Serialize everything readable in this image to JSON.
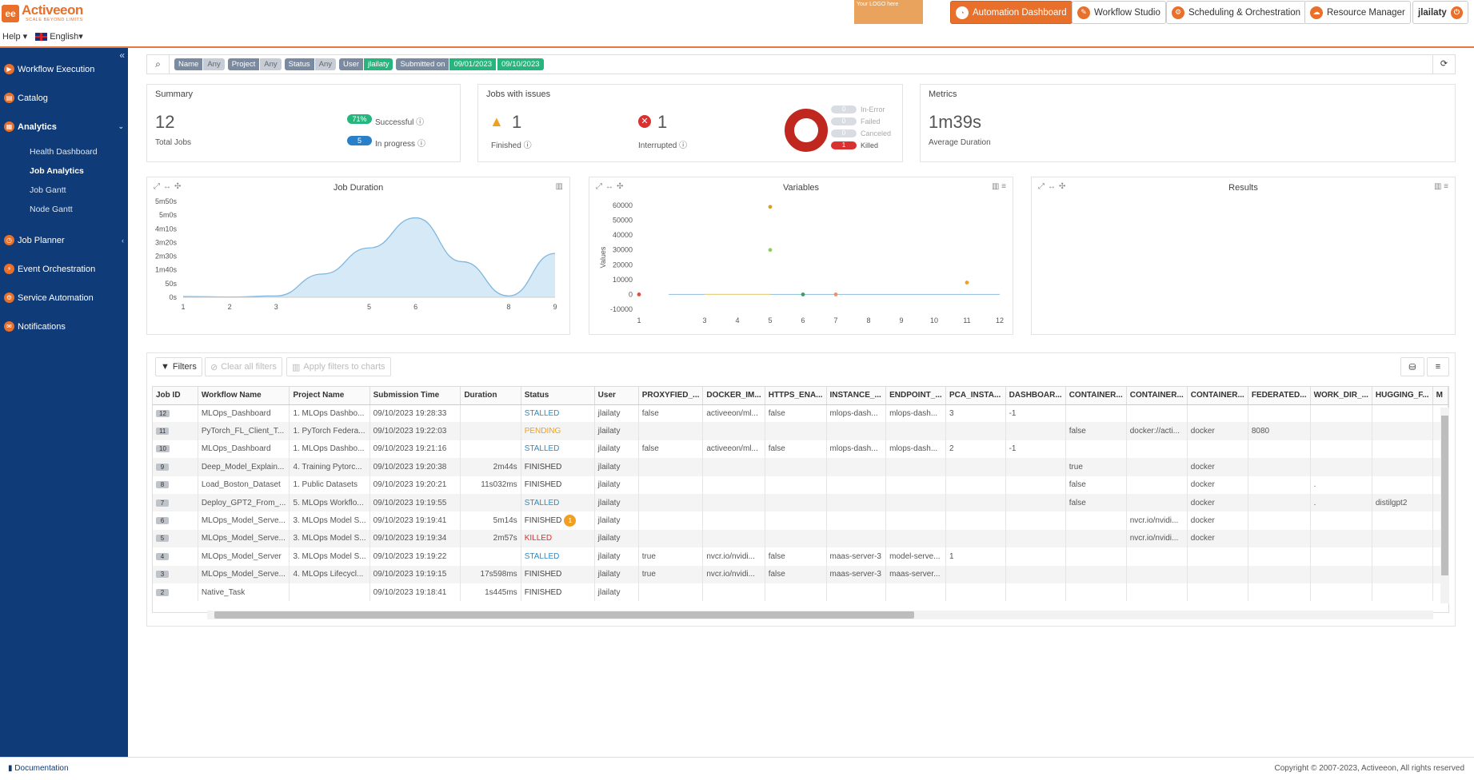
{
  "app": {
    "brand": "Activeeon",
    "tagline": "SCALE BEYOND LIMITS",
    "help": "Help",
    "language": "English"
  },
  "promo": {
    "text": "Your LOGO here"
  },
  "topnav": [
    {
      "label": "Automation Dashboard",
      "icon": "dashboard-icon"
    },
    {
      "label": "Workflow Studio",
      "icon": "studio-icon"
    },
    {
      "label": "Scheduling & Orchestration",
      "icon": "scheduler-icon"
    },
    {
      "label": "Resource Manager",
      "icon": "cloud-icon"
    }
  ],
  "user": {
    "name": "jlailaty"
  },
  "sidebar": {
    "items": [
      {
        "label": "Workflow Execution"
      },
      {
        "label": "Catalog"
      },
      {
        "label": "Analytics"
      },
      {
        "label": "Job Planner"
      },
      {
        "label": "Event Orchestration"
      },
      {
        "label": "Service Automation"
      },
      {
        "label": "Notifications"
      }
    ],
    "analytics_sub": [
      "Health Dashboard",
      "Job Analytics",
      "Job Gantt",
      "Node Gantt"
    ]
  },
  "filters": [
    {
      "key": "Name",
      "value": "Any"
    },
    {
      "key": "Project",
      "value": "Any"
    },
    {
      "key": "Status",
      "value": "Any"
    },
    {
      "key": "User",
      "value": "jlailaty"
    },
    {
      "key": "Submitted on",
      "value": "09/01/2023",
      "value2": "09/10/2023"
    }
  ],
  "summary": {
    "title": "Summary",
    "total": "12",
    "total_label": "Total Jobs",
    "success_pct": "71%",
    "success_label": "Successful",
    "inprogress": "5",
    "inprogress_label": "In progress"
  },
  "issues": {
    "title": "Jobs with issues",
    "finished": "1",
    "finished_label": "Finished",
    "interrupted": "1",
    "interrupted_label": "Interrupted",
    "legend": [
      {
        "count": "0",
        "label": "In-Error"
      },
      {
        "count": "0",
        "label": "Failed"
      },
      {
        "count": "0",
        "label": "Canceled"
      },
      {
        "count": "1",
        "label": "Killed"
      }
    ]
  },
  "metrics": {
    "title": "Metrics",
    "avg": "1m39s",
    "avg_label": "Average Duration"
  },
  "charts": {
    "duration": {
      "title": "Job Duration"
    },
    "variables": {
      "title": "Variables",
      "ylabel": "Values"
    },
    "results": {
      "title": "Results"
    }
  },
  "chart_data": [
    {
      "type": "area",
      "title": "Job Duration",
      "x": [
        1,
        2,
        3,
        4,
        5,
        6,
        7,
        8,
        9
      ],
      "values_seconds": [
        3,
        1,
        5,
        85,
        180,
        290,
        130,
        5,
        160
      ],
      "yticks": [
        "0s",
        "50s",
        "1m40s",
        "2m30s",
        "3m20s",
        "4m10s",
        "5m0s",
        "5m50s"
      ],
      "ylim": [
        0,
        350
      ],
      "xticks": [
        "1",
        "2",
        "3",
        "5",
        "6",
        "8",
        "9"
      ],
      "color": "#d6e9f7"
    },
    {
      "type": "scatter",
      "title": "Variables",
      "ylabel": "Values",
      "yticks": [
        "-10000",
        "0",
        "10000",
        "20000",
        "30000",
        "40000",
        "50000",
        "60000"
      ],
      "ylim": [
        -10000,
        60000
      ],
      "xticks": [
        "1",
        "3",
        "4",
        "5",
        "6",
        "7",
        "8",
        "9",
        "10",
        "11",
        "12"
      ],
      "points": [
        {
          "x": 1,
          "y": 0,
          "color": "#e0503a"
        },
        {
          "x": 5,
          "y": 59000,
          "color": "#d8a020"
        },
        {
          "x": 5,
          "y": 30000,
          "color": "#8ccf5a"
        },
        {
          "x": 6,
          "y": 0,
          "color": "#3aa060"
        },
        {
          "x": 7,
          "y": 0,
          "color": "#f0906a"
        },
        {
          "x": 11,
          "y": 8000,
          "color": "#f0a020"
        }
      ]
    }
  ],
  "grid": {
    "filters_btn": "Filters",
    "clear_btn": "Clear all filters",
    "apply_btn": "Apply filters to charts",
    "columns": [
      "Job ID",
      "Workflow Name",
      "Project Name",
      "Submission Time",
      "Duration",
      "Status",
      "User",
      "PROXYFIED_...",
      "DOCKER_IM...",
      "HTTPS_ENA...",
      "INSTANCE_...",
      "ENDPOINT_...",
      "PCA_INSTA...",
      "DASHBOAR...",
      "CONTAINER...",
      "CONTAINER...",
      "CONTAINER...",
      "FEDERATED...",
      "WORK_DIR_...",
      "HUGGING_F...",
      "M"
    ],
    "rows": [
      [
        "12",
        "MLOps_Dashboard",
        "1. MLOps Dashbo...",
        "09/10/2023 19:28:33",
        "",
        "STALLED",
        "jlailaty",
        "false",
        "activeeon/ml...",
        "false",
        "mlops-dash...",
        "mlops-dash...",
        "3",
        "-1",
        "",
        "",
        "",
        "",
        "",
        "",
        ""
      ],
      [
        "11",
        "PyTorch_FL_Client_T...",
        "1. PyTorch Federa...",
        "09/10/2023 19:22:03",
        "",
        "PENDING",
        "jlailaty",
        "",
        "",
        "",
        "",
        "",
        "",
        "",
        "false",
        "docker://acti...",
        "docker",
        "8080",
        "",
        "",
        ""
      ],
      [
        "10",
        "MLOps_Dashboard",
        "1. MLOps Dashbo...",
        "09/10/2023 19:21:16",
        "",
        "STALLED",
        "jlailaty",
        "false",
        "activeeon/ml...",
        "false",
        "mlops-dash...",
        "mlops-dash...",
        "2",
        "-1",
        "",
        "",
        "",
        "",
        "",
        "",
        ""
      ],
      [
        "9",
        "Deep_Model_Explain...",
        "4. Training Pytorc...",
        "09/10/2023 19:20:38",
        "2m44s",
        "FINISHED",
        "jlailaty",
        "",
        "",
        "",
        "",
        "",
        "",
        "",
        "true",
        "",
        "docker",
        "",
        "",
        "",
        ""
      ],
      [
        "8",
        "Load_Boston_Dataset",
        "1. Public Datasets",
        "09/10/2023 19:20:21",
        "11s032ms",
        "FINISHED",
        "jlailaty",
        "",
        "",
        "",
        "",
        "",
        "",
        "",
        "false",
        "",
        "docker",
        "",
        ".",
        "",
        ""
      ],
      [
        "7",
        "Deploy_GPT2_From_...",
        "5. MLOps Workflo...",
        "09/10/2023 19:19:55",
        "",
        "STALLED",
        "jlailaty",
        "",
        "",
        "",
        "",
        "",
        "",
        "",
        "false",
        "",
        "docker",
        "",
        ".",
        "distilgpt2",
        ""
      ],
      [
        "6",
        "MLOps_Model_Serve...",
        "3. MLOps Model S...",
        "09/10/2023 19:19:41",
        "5m14s",
        "FINISHED",
        "jlailaty",
        "",
        "",
        "",
        "",
        "",
        "",
        "",
        "",
        "nvcr.io/nvidi...",
        "docker",
        "",
        "",
        "",
        ""
      ],
      [
        "5",
        "MLOps_Model_Serve...",
        "3. MLOps Model S...",
        "09/10/2023 19:19:34",
        "2m57s",
        "KILLED",
        "jlailaty",
        "",
        "",
        "",
        "",
        "",
        "",
        "",
        "",
        "nvcr.io/nvidi...",
        "docker",
        "",
        "",
        "",
        ""
      ],
      [
        "4",
        "MLOps_Model_Server",
        "3. MLOps Model S...",
        "09/10/2023 19:19:22",
        "",
        "STALLED",
        "jlailaty",
        "true",
        "nvcr.io/nvidi...",
        "false",
        "maas-server-3",
        "model-serve...",
        "1",
        "",
        "",
        "",
        "",
        "",
        "",
        "",
        ""
      ],
      [
        "3",
        "MLOps_Model_Serve...",
        "4. MLOps Lifecycl...",
        "09/10/2023 19:19:15",
        "17s598ms",
        "FINISHED",
        "jlailaty",
        "true",
        "nvcr.io/nvidi...",
        "false",
        "maas-server-3",
        "maas-server...",
        "",
        "",
        "",
        "",
        "",
        "",
        "",
        "",
        ""
      ],
      [
        "2",
        "Native_Task",
        "",
        "09/10/2023 19:18:41",
        "1s445ms",
        "FINISHED",
        "jlailaty",
        "",
        "",
        "",
        "",
        "",
        "",
        "",
        "",
        "",
        "",
        "",
        "",
        "",
        ""
      ]
    ],
    "row6_badge": "1"
  },
  "footer": {
    "doc": "Documentation",
    "copyright": "Copyright © 2007-2023, Activeeon, All rights reserved"
  }
}
